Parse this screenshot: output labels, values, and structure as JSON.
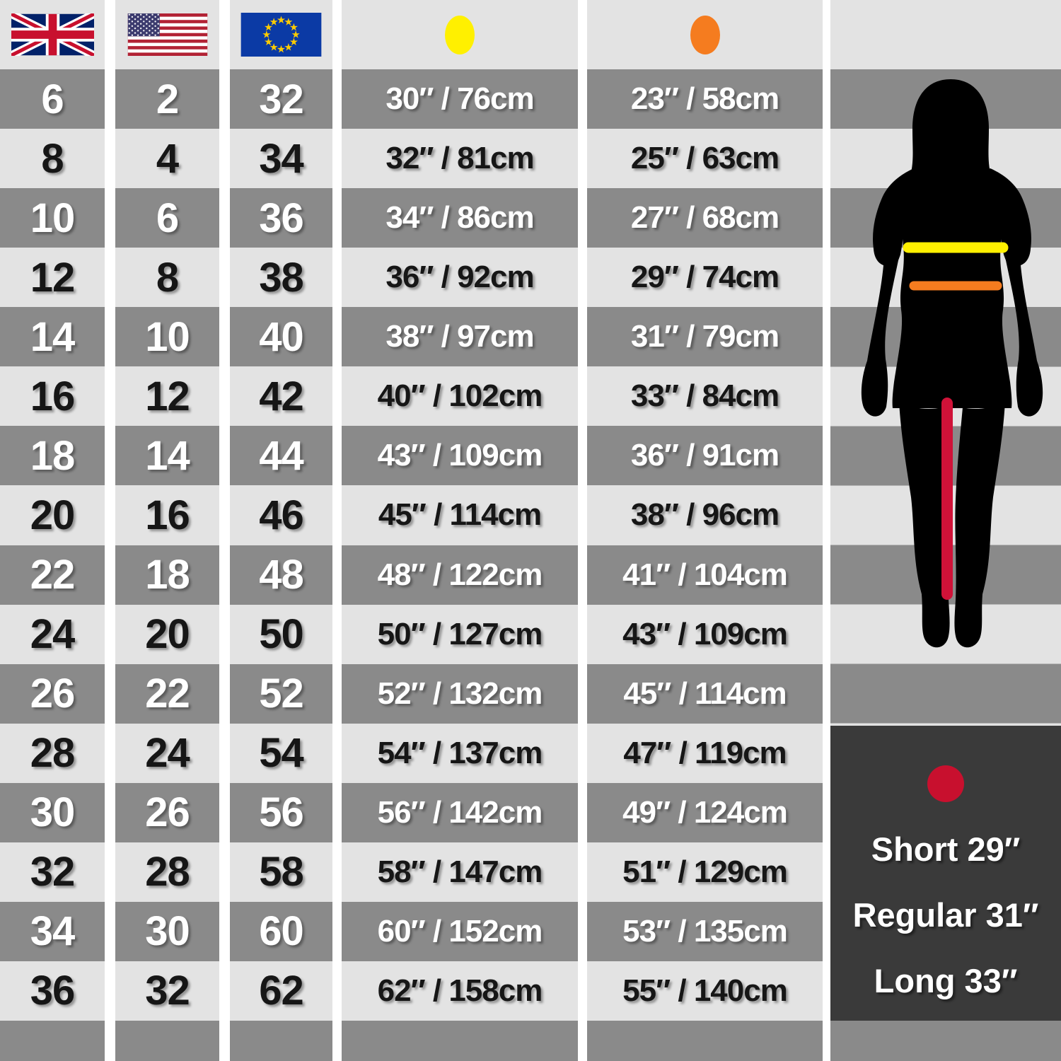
{
  "chart_data": {
    "type": "table",
    "columns": [
      "uk",
      "us",
      "eu",
      "bust",
      "waist"
    ],
    "header_icons": [
      "uk-flag",
      "us-flag",
      "eu-flag",
      "bust-dot",
      "waist-dot"
    ],
    "rows": [
      {
        "uk": "6",
        "us": "2",
        "eu": "32",
        "bust": "30″ / 76cm",
        "waist": "23″ / 58cm"
      },
      {
        "uk": "8",
        "us": "4",
        "eu": "34",
        "bust": "32″ / 81cm",
        "waist": "25″ / 63cm"
      },
      {
        "uk": "10",
        "us": "6",
        "eu": "36",
        "bust": "34″ / 86cm",
        "waist": "27″ / 68cm"
      },
      {
        "uk": "12",
        "us": "8",
        "eu": "38",
        "bust": "36″ / 92cm",
        "waist": "29″ / 74cm"
      },
      {
        "uk": "14",
        "us": "10",
        "eu": "40",
        "bust": "38″ / 97cm",
        "waist": "31″ / 79cm"
      },
      {
        "uk": "16",
        "us": "12",
        "eu": "42",
        "bust": "40″ / 102cm",
        "waist": "33″ / 84cm"
      },
      {
        "uk": "18",
        "us": "14",
        "eu": "44",
        "bust": "43″ / 109cm",
        "waist": "36″ / 91cm"
      },
      {
        "uk": "20",
        "us": "16",
        "eu": "46",
        "bust": "45″ / 114cm",
        "waist": "38″ / 96cm"
      },
      {
        "uk": "22",
        "us": "18",
        "eu": "48",
        "bust": "48″ / 122cm",
        "waist": "41″ / 104cm"
      },
      {
        "uk": "24",
        "us": "20",
        "eu": "50",
        "bust": "50″ / 127cm",
        "waist": "43″ / 109cm"
      },
      {
        "uk": "26",
        "us": "22",
        "eu": "52",
        "bust": "52″ / 132cm",
        "waist": "45″ / 114cm"
      },
      {
        "uk": "28",
        "us": "24",
        "eu": "54",
        "bust": "54″ / 137cm",
        "waist": "47″ / 119cm"
      },
      {
        "uk": "30",
        "us": "26",
        "eu": "56",
        "bust": "56″ / 142cm",
        "waist": "49″ / 124cm"
      },
      {
        "uk": "32",
        "us": "28",
        "eu": "58",
        "bust": "58″ / 147cm",
        "waist": "51″ / 129cm"
      },
      {
        "uk": "34",
        "us": "30",
        "eu": "60",
        "bust": "60″ / 152cm",
        "waist": "53″ / 135cm"
      },
      {
        "uk": "36",
        "us": "32",
        "eu": "62",
        "bust": "62″ / 158cm",
        "waist": "55″ / 140cm"
      }
    ]
  },
  "markers": {
    "bust_dot_color": "#FFF000",
    "waist_dot_color": "#F57C1F",
    "inseam_dot_color": "#C8102E"
  },
  "figure": {
    "bust_line_color": "#FFF000",
    "waist_line_color": "#F57C1F",
    "inseam_line_color": "#D01238",
    "silhouette_color": "#000000"
  },
  "inseam": {
    "lines": [
      "Short 29″",
      "Regular 31″",
      "Long 33″"
    ]
  },
  "colors": {
    "row_dark": "#8A8A8A",
    "row_light": "#E3E3E3",
    "header_bg": "#E3E3E3",
    "gutter": "#FFFFFF",
    "panel_bg": "#3A3A3A",
    "text_on_dark": "#FFFFFF",
    "text_on_light": "#161616"
  }
}
